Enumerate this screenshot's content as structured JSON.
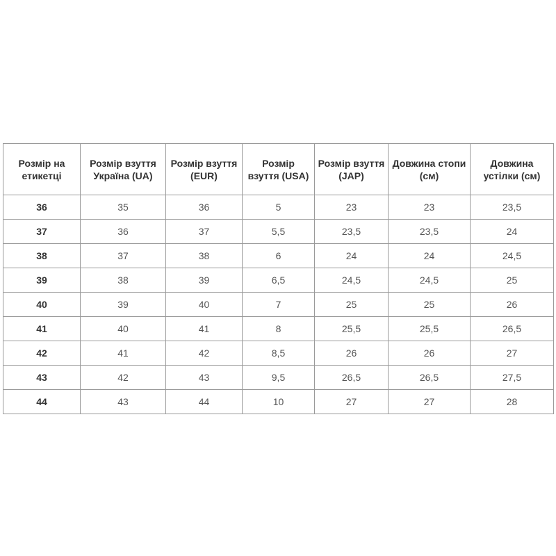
{
  "table": {
    "headers": [
      "Розмір на етикетці",
      "Розмір взуття Україна (UA)",
      "Розмір взуття (EUR)",
      "Розмір взуття (USA)",
      "Розмір взуття (JAP)",
      "Довжина стопи (см)",
      "Довжина устілки (см)"
    ],
    "rows": [
      [
        "36",
        "35",
        "36",
        "5",
        "23",
        "23",
        "23,5"
      ],
      [
        "37",
        "36",
        "37",
        "5,5",
        "23,5",
        "23,5",
        "24"
      ],
      [
        "38",
        "37",
        "38",
        "6",
        "24",
        "24",
        "24,5"
      ],
      [
        "39",
        "38",
        "39",
        "6,5",
        "24,5",
        "24,5",
        "25"
      ],
      [
        "40",
        "39",
        "40",
        "7",
        "25",
        "25",
        "26"
      ],
      [
        "41",
        "40",
        "41",
        "8",
        "25,5",
        "25,5",
        "26,5"
      ],
      [
        "42",
        "41",
        "42",
        "8,5",
        "26",
        "26",
        "27"
      ],
      [
        "43",
        "42",
        "43",
        "9,5",
        "26,5",
        "26,5",
        "27,5"
      ],
      [
        "44",
        "43",
        "44",
        "10",
        "27",
        "27",
        "28"
      ]
    ]
  }
}
